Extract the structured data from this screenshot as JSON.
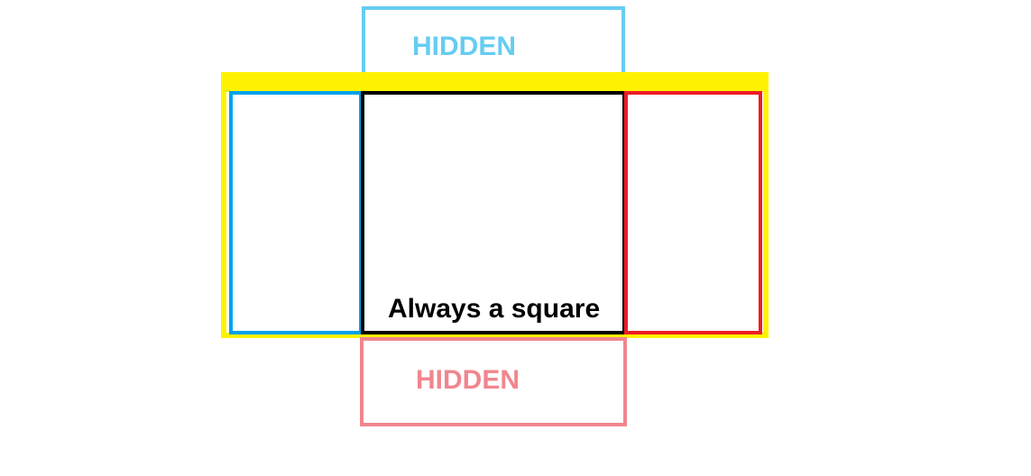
{
  "diagram": {
    "top_panel": {
      "label": "HIDDEN",
      "color": "#66ccf2"
    },
    "container": {
      "color": "#fff200"
    },
    "left_panel": {
      "color": "#00a2e8"
    },
    "center_panel": {
      "label": "Always a square",
      "color": "#000000"
    },
    "right_panel": {
      "color": "#ed1c24"
    },
    "bottom_panel": {
      "label": "HIDDEN",
      "color": "#f0868e"
    }
  }
}
